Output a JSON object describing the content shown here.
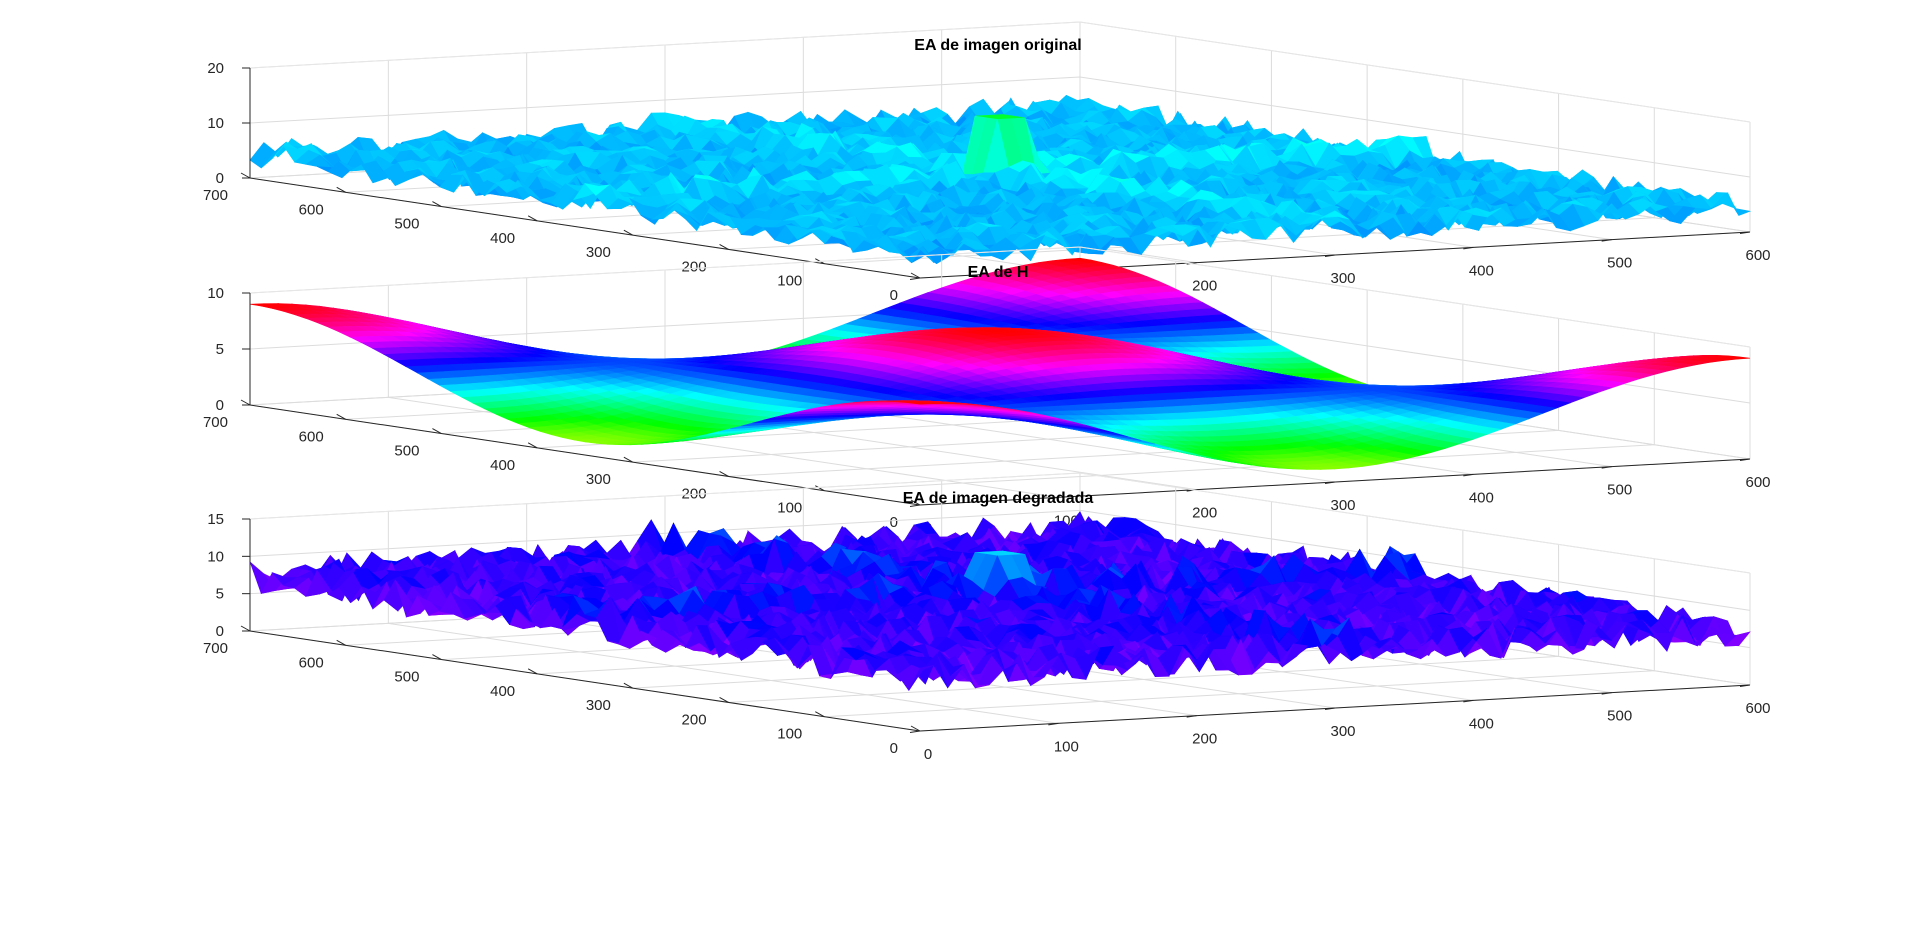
{
  "chart_data": [
    {
      "type": "surface",
      "title": "EA de imagen original",
      "xlabel": "",
      "ylabel": "",
      "zlabel": "",
      "x_ticks": [
        "0",
        "100",
        "200",
        "300",
        "400",
        "500",
        "600"
      ],
      "y_ticks": [
        "0",
        "100",
        "200",
        "300",
        "400",
        "500",
        "600",
        "700"
      ],
      "z_ticks": [
        "0",
        "10",
        "20"
      ],
      "xlim": [
        0,
        600
      ],
      "ylim": [
        0,
        700
      ],
      "zlim": [
        0,
        20
      ],
      "grid": true,
      "base_level": 5,
      "noise_amplitude": 2.5,
      "peak_value": 16,
      "colormap": "hsv",
      "color_min": 0.3,
      "color_max": 0.62
    },
    {
      "type": "surface",
      "title": "EA de H",
      "xlabel": "",
      "ylabel": "",
      "zlabel": "",
      "x_ticks": [
        "0",
        "100",
        "200",
        "300",
        "400",
        "500",
        "600"
      ],
      "y_ticks": [
        "0",
        "100",
        "200",
        "300",
        "400",
        "500",
        "600",
        "700"
      ],
      "z_ticks": [
        "0",
        "5",
        "10"
      ],
      "xlim": [
        0,
        600
      ],
      "ylim": [
        0,
        700
      ],
      "zlim": [
        0,
        10
      ],
      "grid": true,
      "min_value": 0.3,
      "max_value": 9.0,
      "colormap": "hsv",
      "color_min": 0.0,
      "color_max": 1.0
    },
    {
      "type": "surface",
      "title": "EA de imagen degradada",
      "xlabel": "",
      "ylabel": "",
      "zlabel": "",
      "x_ticks": [
        "0",
        "100",
        "200",
        "300",
        "400",
        "500",
        "600"
      ],
      "y_ticks": [
        "0",
        "100",
        "200",
        "300",
        "400",
        "500",
        "600",
        "700"
      ],
      "z_ticks": [
        "0",
        "5",
        "10",
        "15"
      ],
      "xlim": [
        0,
        600
      ],
      "ylim": [
        0,
        700
      ],
      "zlim": [
        0,
        15
      ],
      "grid": true,
      "base_level": 8,
      "noise_amplitude": 2.5,
      "peak_value": 14,
      "colormap": "hsv",
      "color_min": 0.5,
      "color_max": 0.92
    }
  ]
}
